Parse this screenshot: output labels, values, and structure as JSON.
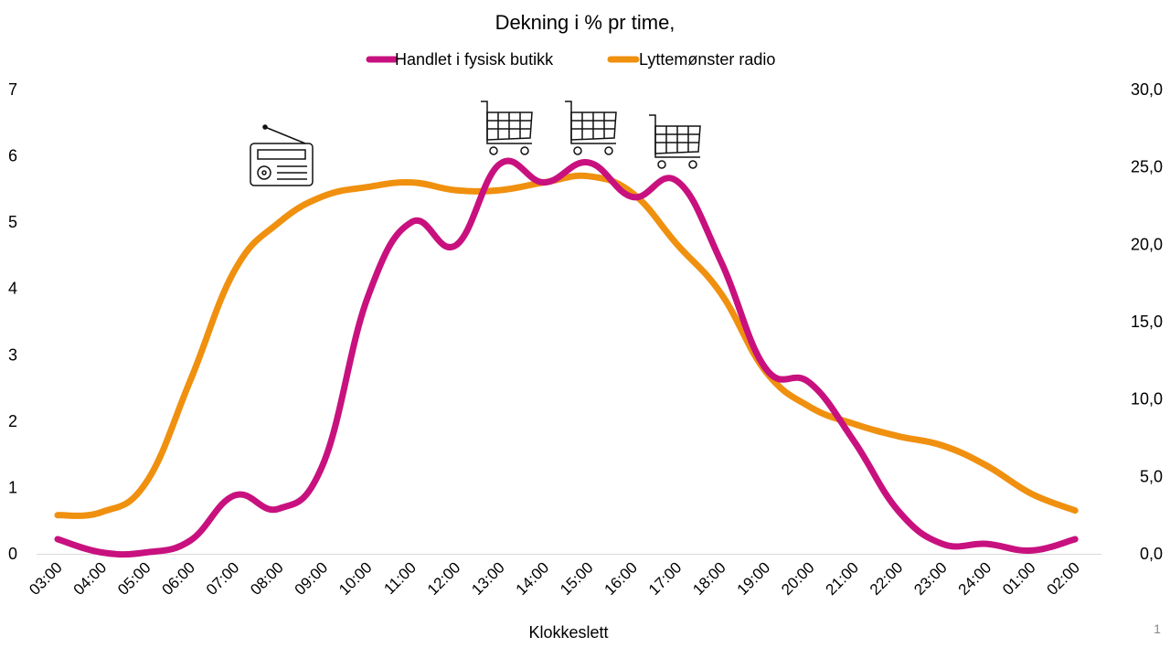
{
  "chart_data": {
    "type": "line",
    "title": "Dekning i % pr time,",
    "xlabel": "Klokkeslett",
    "ylabel_left": "",
    "ylabel_right": "",
    "categories": [
      "03:00",
      "04:00",
      "05:00",
      "06:00",
      "07:00",
      "08:00",
      "09:00",
      "10:00",
      "11:00",
      "12:00",
      "13:00",
      "14:00",
      "15:00",
      "16:00",
      "17:00",
      "18:00",
      "19:00",
      "20:00",
      "21:00",
      "22:00",
      "23:00",
      "24:00",
      "01:00",
      "02:00"
    ],
    "y_left": {
      "min": 0,
      "max": 7,
      "ticks": [
        "0",
        "1",
        "2",
        "3",
        "4",
        "5",
        "6",
        "7"
      ]
    },
    "y_right": {
      "min": 0,
      "max": 30,
      "ticks": [
        "0,0",
        "5,0",
        "10,0",
        "15,0",
        "20,0",
        "25,0",
        "30,0"
      ]
    },
    "legend_position": "top-center",
    "series": [
      {
        "name": "Handlet i fysisk butikk",
        "axis": "left",
        "color": "#C8117F",
        "values": [
          0.22,
          0.02,
          0.02,
          0.2,
          0.88,
          0.68,
          1.35,
          3.85,
          5.0,
          4.65,
          5.88,
          5.6,
          5.9,
          5.38,
          5.62,
          4.4,
          2.8,
          2.58,
          1.7,
          0.65,
          0.15,
          0.15,
          0.05,
          0.22
        ]
      },
      {
        "name": "Lyttemønster radio",
        "axis": "right",
        "color": "#F0900F",
        "values": [
          2.5,
          2.7,
          4.6,
          11.2,
          18.3,
          21.4,
          23.1,
          23.7,
          24.0,
          23.5,
          23.5,
          24.0,
          24.4,
          23.3,
          20.0,
          16.8,
          11.8,
          9.5,
          8.4,
          7.6,
          7.0,
          5.7,
          3.9,
          2.8
        ]
      }
    ],
    "annotations": [
      {
        "icon": "radio-icon",
        "near": "07:00"
      },
      {
        "icon": "shopping-cart-icon",
        "near": "13:00"
      },
      {
        "icon": "shopping-cart-icon",
        "near": "15:00"
      },
      {
        "icon": "shopping-cart-icon",
        "near": "17:00"
      }
    ]
  },
  "page_number": "1"
}
